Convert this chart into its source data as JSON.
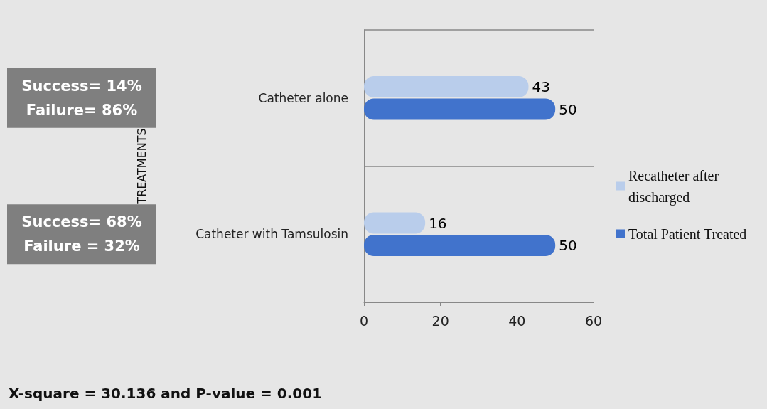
{
  "chart_data": {
    "type": "bar",
    "orientation": "horizontal",
    "ylabel": "TREATMENTS",
    "categories": [
      "Catheter alone",
      "Catheter with Tamsulosin"
    ],
    "series": [
      {
        "name": "Recatheter after discharged",
        "color": "#b9cdeb",
        "values": [
          43,
          16
        ]
      },
      {
        "name": "Total Patient Treated",
        "color": "#4173cc",
        "values": [
          50,
          50
        ]
      }
    ],
    "xlim": [
      0,
      60
    ],
    "xticks": [
      0,
      20,
      40,
      60
    ],
    "grid": "y",
    "legend": "right",
    "data_labels": true,
    "annotations": [
      "Success= 14%\nFailure= 86%",
      "Success= 68%\nFailure = 32%",
      "X-square = 30.136 and P-value = 0.001"
    ]
  }
}
